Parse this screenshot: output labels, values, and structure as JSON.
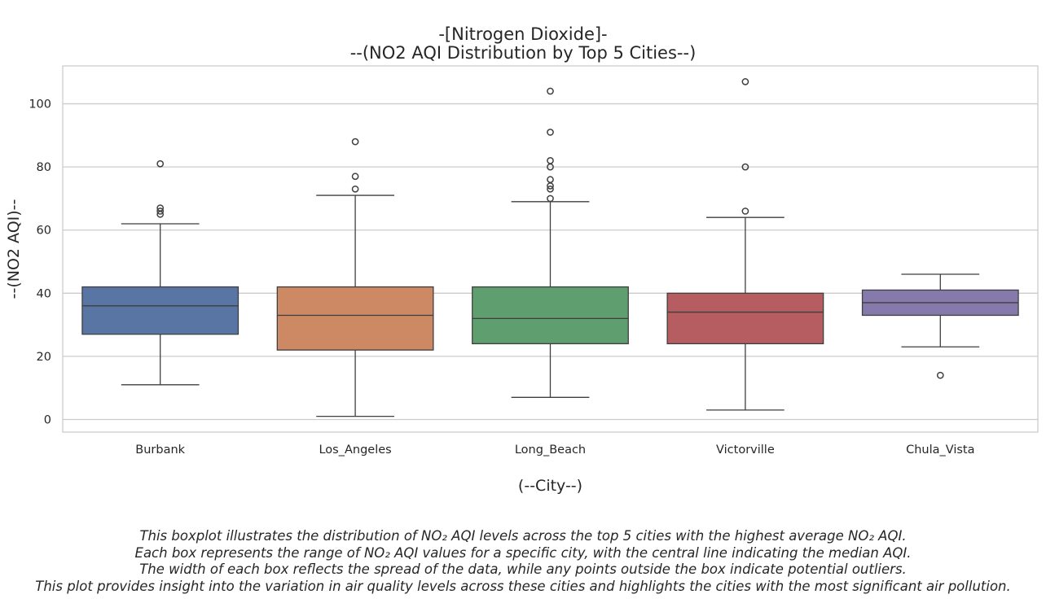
{
  "chart_data": {
    "type": "box",
    "title": "-[Nitrogen Dioxide]-",
    "subtitle": "--(NO2 AQI Distribution by Top 5 Cities--)",
    "xlabel": "(--City--)",
    "ylabel": "--(NO2 AQI)--",
    "ylim": [
      -4,
      112
    ],
    "yticks": [
      0,
      20,
      40,
      60,
      80,
      100
    ],
    "grid": true,
    "categories": [
      "Burbank",
      "Los_Angeles",
      "Long_Beach",
      "Victorville",
      "Chula_Vista"
    ],
    "series": [
      {
        "category": "Burbank",
        "color": "#5975a4",
        "whisker_low": 11,
        "q1": 27,
        "median": 36,
        "q3": 42,
        "whisker_high": 62,
        "outliers": [
          65,
          66,
          67,
          81
        ]
      },
      {
        "category": "Los_Angeles",
        "color": "#cc8963",
        "whisker_low": 1,
        "q1": 22,
        "median": 33,
        "q3": 42,
        "whisker_high": 71,
        "outliers": [
          73,
          77,
          88
        ]
      },
      {
        "category": "Long_Beach",
        "color": "#5f9e6e",
        "whisker_low": 7,
        "q1": 24,
        "median": 32,
        "q3": 42,
        "whisker_high": 69,
        "outliers": [
          70,
          73,
          74,
          76,
          80,
          82,
          91,
          104
        ]
      },
      {
        "category": "Victorville",
        "color": "#b55d60",
        "whisker_low": 3,
        "q1": 24,
        "median": 34,
        "q3": 40,
        "whisker_high": 64,
        "outliers": [
          66,
          80,
          107
        ]
      },
      {
        "category": "Chula_Vista",
        "color": "#857aab",
        "whisker_low": 23,
        "q1": 33,
        "median": 37,
        "q3": 41,
        "whisker_high": 46,
        "outliers": [
          14
        ]
      }
    ],
    "caption": [
      "This boxplot illustrates the distribution of NO₂ AQI levels across the top 5 cities with the highest average NO₂ AQI.",
      "Each box represents the range of NO₂ AQI values for a specific city, with the central line indicating the median AQI.",
      "The width of each box reflects the spread of the data, while any points outside the box indicate potential outliers.",
      "This plot provides insight into the variation in air quality levels across these cities and highlights the cities with the most significant air pollution."
    ]
  }
}
